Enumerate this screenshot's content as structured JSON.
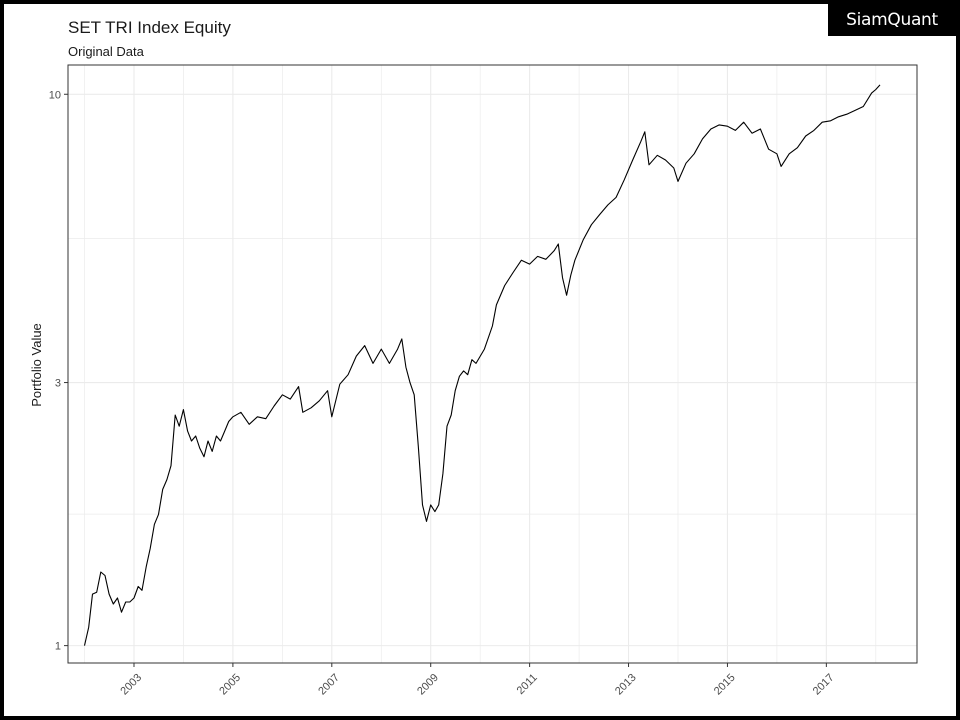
{
  "brand": {
    "logo_text": "SiamQuant"
  },
  "chart_data": {
    "type": "line",
    "title": "SET TRI Index Equity",
    "subtitle": "Original Data",
    "xlabel": "",
    "ylabel": "Portfolio Value",
    "y_scale": "log",
    "ylim": [
      0.93,
      11.3
    ],
    "y_ticks": [
      1,
      3,
      10
    ],
    "xlim": [
      "2001-09-01",
      "2018-11-01"
    ],
    "x_ticks": [
      "2003",
      "2005",
      "2007",
      "2009",
      "2011",
      "2013",
      "2015",
      "2017"
    ],
    "grid": true,
    "line_color": "#000000",
    "series": [
      {
        "x": [
          "2002-01-01",
          "2002-02-01",
          "2002-03-01",
          "2002-04-01",
          "2002-05-01",
          "2002-06-01",
          "2002-07-01",
          "2002-08-01",
          "2002-09-01",
          "2002-10-01",
          "2002-11-01",
          "2002-12-01",
          "2003-01-01",
          "2003-02-01",
          "2003-03-01",
          "2003-04-01",
          "2003-05-01",
          "2003-06-01",
          "2003-07-01",
          "2003-08-01",
          "2003-09-01",
          "2003-10-01",
          "2003-11-01",
          "2003-12-01",
          "2004-01-01",
          "2004-02-01",
          "2004-03-01",
          "2004-04-01",
          "2004-05-01",
          "2004-06-01",
          "2004-07-01",
          "2004-08-01",
          "2004-09-01",
          "2004-10-01",
          "2004-11-01",
          "2004-12-01",
          "2005-01-01",
          "2005-03-01",
          "2005-05-01",
          "2005-07-01",
          "2005-09-01",
          "2005-11-01",
          "2006-01-01",
          "2006-03-01",
          "2006-05-01",
          "2006-06-01",
          "2006-08-01",
          "2006-10-01",
          "2006-12-01",
          "2007-01-01",
          "2007-03-01",
          "2007-05-01",
          "2007-07-01",
          "2007-09-01",
          "2007-11-01",
          "2008-01-01",
          "2008-03-01",
          "2008-05-01",
          "2008-06-01",
          "2008-07-01",
          "2008-08-01",
          "2008-09-01",
          "2008-10-01",
          "2008-11-01",
          "2008-12-01",
          "2009-01-01",
          "2009-02-01",
          "2009-03-01",
          "2009-04-01",
          "2009-05-01",
          "2009-06-01",
          "2009-07-01",
          "2009-08-01",
          "2009-09-01",
          "2009-10-01",
          "2009-11-01",
          "2009-12-01",
          "2010-02-01",
          "2010-04-01",
          "2010-05-01",
          "2010-07-01",
          "2010-09-01",
          "2010-11-01",
          "2011-01-01",
          "2011-03-01",
          "2011-05-01",
          "2011-07-01",
          "2011-08-01",
          "2011-09-01",
          "2011-10-01",
          "2011-11-01",
          "2011-12-01",
          "2012-02-01",
          "2012-04-01",
          "2012-06-01",
          "2012-08-01",
          "2012-10-01",
          "2012-12-01",
          "2013-02-01",
          "2013-04-01",
          "2013-05-01",
          "2013-06-01",
          "2013-08-01",
          "2013-10-01",
          "2013-12-01",
          "2014-01-01",
          "2014-03-01",
          "2014-05-01",
          "2014-07-01",
          "2014-09-01",
          "2014-11-01",
          "2015-01-01",
          "2015-03-01",
          "2015-05-01",
          "2015-07-01",
          "2015-09-01",
          "2015-11-01",
          "2016-01-01",
          "2016-02-01",
          "2016-04-01",
          "2016-06-01",
          "2016-08-01",
          "2016-10-01",
          "2016-12-01",
          "2017-02-01",
          "2017-04-01",
          "2017-06-01",
          "2017-08-01",
          "2017-10-01",
          "2017-12-01",
          "2018-01-01",
          "2018-02-01"
        ],
        "y": [
          1.0,
          1.08,
          1.24,
          1.25,
          1.36,
          1.34,
          1.24,
          1.19,
          1.22,
          1.15,
          1.2,
          1.2,
          1.22,
          1.28,
          1.26,
          1.39,
          1.5,
          1.66,
          1.73,
          1.92,
          2.0,
          2.12,
          2.62,
          2.5,
          2.68,
          2.45,
          2.35,
          2.4,
          2.28,
          2.2,
          2.35,
          2.25,
          2.4,
          2.35,
          2.45,
          2.55,
          2.6,
          2.65,
          2.52,
          2.6,
          2.58,
          2.72,
          2.85,
          2.8,
          2.95,
          2.65,
          2.7,
          2.78,
          2.9,
          2.6,
          2.98,
          3.1,
          3.35,
          3.5,
          3.25,
          3.45,
          3.25,
          3.45,
          3.6,
          3.2,
          3.0,
          2.85,
          2.3,
          1.8,
          1.68,
          1.8,
          1.75,
          1.8,
          2.05,
          2.5,
          2.62,
          2.9,
          3.08,
          3.15,
          3.1,
          3.3,
          3.25,
          3.45,
          3.8,
          4.15,
          4.5,
          4.75,
          5.0,
          4.92,
          5.08,
          5.02,
          5.2,
          5.35,
          4.65,
          4.32,
          4.7,
          5.0,
          5.45,
          5.8,
          6.05,
          6.3,
          6.5,
          7.0,
          7.6,
          8.2,
          8.55,
          7.45,
          7.75,
          7.6,
          7.35,
          6.95,
          7.5,
          7.8,
          8.3,
          8.65,
          8.8,
          8.75,
          8.6,
          8.9,
          8.5,
          8.65,
          7.95,
          7.8,
          7.4,
          7.8,
          8.0,
          8.4,
          8.6,
          8.9,
          8.95,
          9.1,
          9.2,
          9.35,
          9.5,
          10.05,
          10.2,
          10.4
        ]
      }
    ]
  }
}
